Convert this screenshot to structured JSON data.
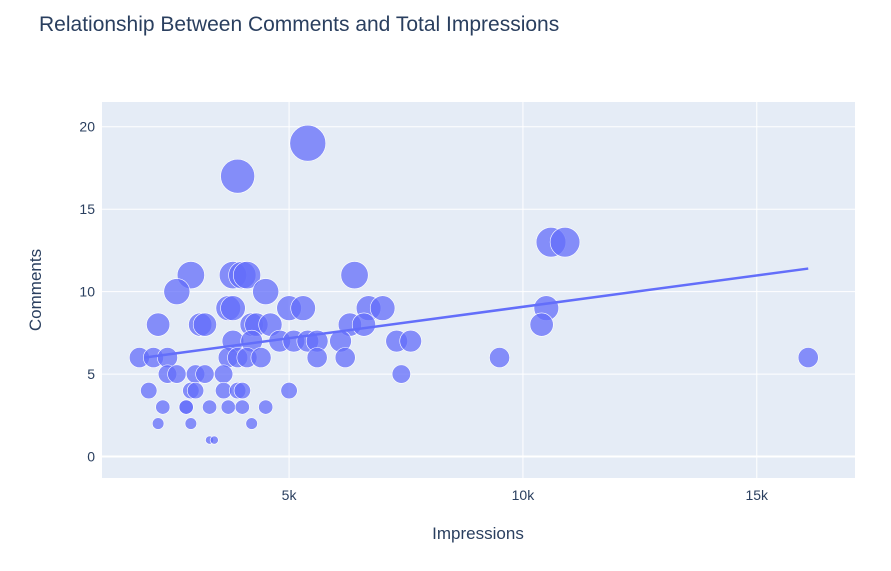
{
  "chart_data": {
    "type": "scatter",
    "title": "Relationship Between Comments and Total Impressions",
    "xlabel": "Impressions",
    "ylabel": "Comments",
    "xlim": [
      1000,
      17100
    ],
    "ylim": [
      -1.3,
      21.5
    ],
    "x_ticks": [
      {
        "value": 5000,
        "label": "5k"
      },
      {
        "value": 10000,
        "label": "10k"
      },
      {
        "value": 15000,
        "label": "15k"
      }
    ],
    "y_ticks": [
      {
        "value": 0,
        "label": "0"
      },
      {
        "value": 5,
        "label": "5"
      },
      {
        "value": 10,
        "label": "10"
      },
      {
        "value": 15,
        "label": "15"
      },
      {
        "value": 20,
        "label": "20"
      }
    ],
    "grid": true,
    "marker_color": "#636efa",
    "plot_bg": "#e5ecf6",
    "points": [
      {
        "x": 5400,
        "y": 19
      },
      {
        "x": 3900,
        "y": 17
      },
      {
        "x": 10600,
        "y": 13
      },
      {
        "x": 10900,
        "y": 13
      },
      {
        "x": 2900,
        "y": 11
      },
      {
        "x": 3800,
        "y": 11
      },
      {
        "x": 4000,
        "y": 11
      },
      {
        "x": 4100,
        "y": 11
      },
      {
        "x": 6400,
        "y": 11
      },
      {
        "x": 2600,
        "y": 10
      },
      {
        "x": 4500,
        "y": 10
      },
      {
        "x": 3700,
        "y": 9
      },
      {
        "x": 3800,
        "y": 9
      },
      {
        "x": 5000,
        "y": 9
      },
      {
        "x": 5300,
        "y": 9
      },
      {
        "x": 6700,
        "y": 9
      },
      {
        "x": 7000,
        "y": 9
      },
      {
        "x": 10500,
        "y": 9
      },
      {
        "x": 2200,
        "y": 8
      },
      {
        "x": 3100,
        "y": 8
      },
      {
        "x": 3200,
        "y": 8
      },
      {
        "x": 4200,
        "y": 8
      },
      {
        "x": 4300,
        "y": 8
      },
      {
        "x": 4600,
        "y": 8
      },
      {
        "x": 6300,
        "y": 8
      },
      {
        "x": 6600,
        "y": 8
      },
      {
        "x": 10400,
        "y": 8
      },
      {
        "x": 3800,
        "y": 7
      },
      {
        "x": 4200,
        "y": 7
      },
      {
        "x": 4800,
        "y": 7
      },
      {
        "x": 5100,
        "y": 7
      },
      {
        "x": 5400,
        "y": 7
      },
      {
        "x": 5600,
        "y": 7
      },
      {
        "x": 6100,
        "y": 7
      },
      {
        "x": 7300,
        "y": 7
      },
      {
        "x": 7600,
        "y": 7
      },
      {
        "x": 1800,
        "y": 6
      },
      {
        "x": 2100,
        "y": 6
      },
      {
        "x": 2400,
        "y": 6
      },
      {
        "x": 3700,
        "y": 6
      },
      {
        "x": 3900,
        "y": 6
      },
      {
        "x": 4100,
        "y": 6
      },
      {
        "x": 4400,
        "y": 6
      },
      {
        "x": 5600,
        "y": 6
      },
      {
        "x": 6200,
        "y": 6
      },
      {
        "x": 9500,
        "y": 6
      },
      {
        "x": 16100,
        "y": 6
      },
      {
        "x": 2400,
        "y": 5
      },
      {
        "x": 2600,
        "y": 5
      },
      {
        "x": 3000,
        "y": 5
      },
      {
        "x": 3200,
        "y": 5
      },
      {
        "x": 3600,
        "y": 5
      },
      {
        "x": 7400,
        "y": 5
      },
      {
        "x": 2000,
        "y": 4
      },
      {
        "x": 2900,
        "y": 4
      },
      {
        "x": 3000,
        "y": 4
      },
      {
        "x": 3600,
        "y": 4
      },
      {
        "x": 3900,
        "y": 4
      },
      {
        "x": 4000,
        "y": 4
      },
      {
        "x": 5000,
        "y": 4
      },
      {
        "x": 2300,
        "y": 3
      },
      {
        "x": 2800,
        "y": 3
      },
      {
        "x": 2800,
        "y": 3
      },
      {
        "x": 3300,
        "y": 3
      },
      {
        "x": 3700,
        "y": 3
      },
      {
        "x": 4000,
        "y": 3
      },
      {
        "x": 4500,
        "y": 3
      },
      {
        "x": 2200,
        "y": 2
      },
      {
        "x": 2900,
        "y": 2
      },
      {
        "x": 4200,
        "y": 2
      },
      {
        "x": 3300,
        "y": 1
      },
      {
        "x": 3400,
        "y": 1
      }
    ],
    "trendline": {
      "x": [
        1900,
        16100
      ],
      "y": [
        6.0,
        11.4
      ]
    }
  }
}
